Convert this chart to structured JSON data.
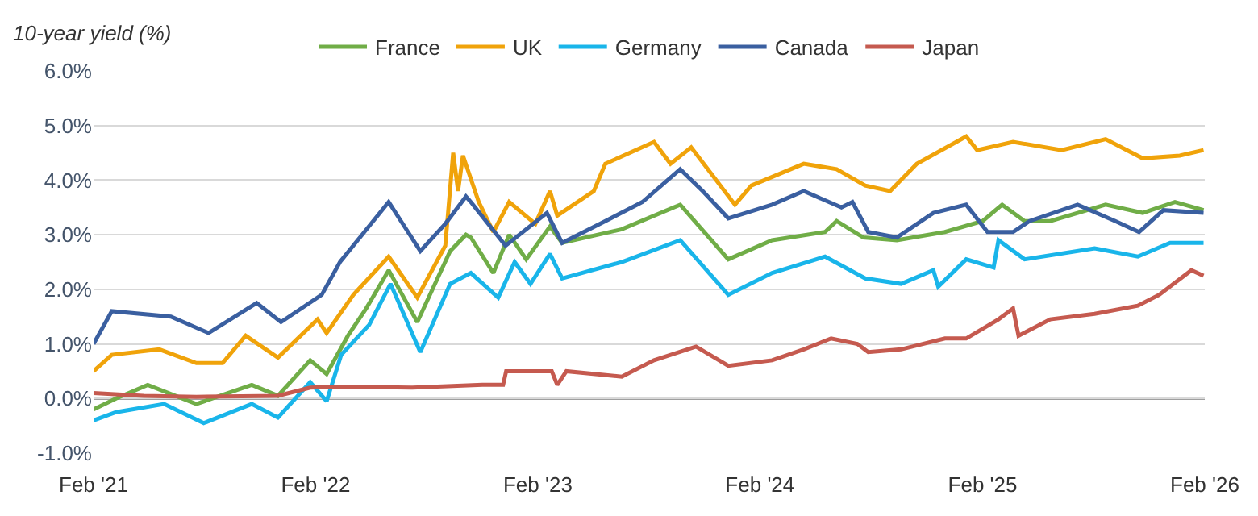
{
  "chart_data": {
    "type": "line",
    "ylabel": "10-year yield (%)",
    "xlim": [
      "2021-02-01",
      "2026-02-01"
    ],
    "xticks": [
      {
        "value": "2021-02-01",
        "label": "Feb '21"
      },
      {
        "value": "2022-02-01",
        "label": "Feb '22"
      },
      {
        "value": "2023-02-01",
        "label": "Feb '23"
      },
      {
        "value": "2024-02-01",
        "label": "Feb '24"
      },
      {
        "value": "2025-02-01",
        "label": "Feb '25"
      },
      {
        "value": "2026-02-01",
        "label": "Feb '26"
      }
    ],
    "ylim": [
      -1,
      6
    ],
    "yticks": [
      {
        "value": -1,
        "label": "-1.0%"
      },
      {
        "value": 0,
        "label": "0.0%"
      },
      {
        "value": 1,
        "label": "1.0%"
      },
      {
        "value": 2,
        "label": "2.0%"
      },
      {
        "value": 3,
        "label": "3.0%"
      },
      {
        "value": 4,
        "label": "4.0%"
      },
      {
        "value": 5,
        "label": "5.0%"
      },
      {
        "value": 6,
        "label": "6.0%"
      }
    ],
    "grid": "y",
    "legend": "top",
    "marker": "none",
    "line_style": "solid",
    "ref_lines": [
      {
        "axis": "y",
        "value": 0,
        "label": null,
        "color": "#7f7f7f"
      }
    ],
    "series": [
      {
        "name": "France",
        "color": "#70ad47",
        "x": [
          "2021-02-01",
          "2021-03-10",
          "2021-05-01",
          "2021-07-20",
          "2021-10-19",
          "2021-12-01",
          "2022-01-23",
          "2022-02-19",
          "2022-03-26",
          "2022-04-25",
          "2022-06-01",
          "2022-07-18",
          "2022-09-10",
          "2022-10-06",
          "2022-10-14",
          "2022-11-20",
          "2022-12-16",
          "2023-01-13",
          "2023-02-21",
          "2023-03-13",
          "2023-06-19",
          "2023-09-23",
          "2023-12-11",
          "2024-02-21",
          "2024-05-18",
          "2024-06-06",
          "2024-07-20",
          "2024-09-13",
          "2024-12-01",
          "2025-02-01",
          "2025-03-05",
          "2025-04-11",
          "2025-05-23",
          "2025-08-22",
          "2025-10-22",
          "2025-12-14",
          "2026-01-30"
        ],
        "values": [
          -0.2,
          0.0,
          0.25,
          -0.1,
          0.25,
          0.05,
          0.7,
          0.45,
          1.15,
          1.65,
          2.35,
          1.4,
          2.7,
          3.0,
          2.95,
          2.3,
          3.0,
          2.55,
          3.15,
          2.85,
          3.1,
          3.55,
          2.55,
          2.9,
          3.05,
          3.25,
          2.95,
          2.9,
          3.05,
          3.25,
          3.55,
          3.25,
          3.25,
          3.55,
          3.4,
          3.6,
          3.45
        ]
      },
      {
        "name": "UK",
        "color": "#f0a30a",
        "x": [
          "2021-02-01",
          "2021-03-03",
          "2021-05-20",
          "2021-07-20",
          "2021-09-01",
          "2021-10-09",
          "2021-12-01",
          "2022-02-04",
          "2022-02-19",
          "2022-04-04",
          "2022-06-01",
          "2022-07-18",
          "2022-09-02",
          "2022-09-15",
          "2022-09-23",
          "2022-10-01",
          "2022-10-27",
          "2022-11-20",
          "2022-12-16",
          "2023-01-28",
          "2023-02-21",
          "2023-03-05",
          "2023-05-04",
          "2023-05-23",
          "2023-08-11",
          "2023-09-07",
          "2023-10-11",
          "2023-12-22",
          "2024-01-18",
          "2024-04-13",
          "2024-06-06",
          "2024-07-23",
          "2024-09-02",
          "2024-10-16",
          "2025-01-05",
          "2025-01-23",
          "2025-03-23",
          "2025-06-11",
          "2025-08-22",
          "2025-10-22",
          "2025-12-22",
          "2026-01-30"
        ],
        "values": [
          0.5,
          0.8,
          0.9,
          0.65,
          0.65,
          1.15,
          0.75,
          1.45,
          1.2,
          1.9,
          2.6,
          1.85,
          2.8,
          4.5,
          3.8,
          4.45,
          3.6,
          3.05,
          3.6,
          3.2,
          3.8,
          3.35,
          3.8,
          4.3,
          4.7,
          4.3,
          4.6,
          3.55,
          3.9,
          4.3,
          4.2,
          3.9,
          3.8,
          4.3,
          4.8,
          4.55,
          4.7,
          4.55,
          4.75,
          4.4,
          4.45,
          4.55
        ]
      },
      {
        "name": "Germany",
        "color": "#19b5ea",
        "x": [
          "2021-02-01",
          "2021-03-10",
          "2021-05-28",
          "2021-08-01",
          "2021-10-19",
          "2021-12-01",
          "2022-01-23",
          "2022-02-19",
          "2022-03-15",
          "2022-04-30",
          "2022-06-04",
          "2022-07-23",
          "2022-09-10",
          "2022-10-14",
          "2022-11-28",
          "2022-12-25",
          "2023-01-20",
          "2023-02-21",
          "2023-03-13",
          "2023-06-19",
          "2023-09-23",
          "2023-12-11",
          "2024-02-21",
          "2024-05-18",
          "2024-07-23",
          "2024-09-20",
          "2024-11-12",
          "2024-11-20",
          "2025-01-05",
          "2025-02-19",
          "2025-02-27",
          "2025-04-11",
          "2025-08-04",
          "2025-10-14",
          "2025-12-06",
          "2026-01-30"
        ],
        "values": [
          -0.4,
          -0.25,
          -0.1,
          -0.45,
          -0.1,
          -0.35,
          0.3,
          -0.05,
          0.8,
          1.35,
          2.1,
          0.85,
          2.1,
          2.3,
          1.85,
          2.5,
          2.1,
          2.65,
          2.2,
          2.5,
          2.9,
          1.9,
          2.3,
          2.6,
          2.2,
          2.1,
          2.35,
          2.05,
          2.55,
          2.4,
          2.9,
          2.55,
          2.75,
          2.6,
          2.85,
          2.85
        ]
      },
      {
        "name": "Canada",
        "color": "#3a5fa0",
        "x": [
          "2021-02-01",
          "2021-03-03",
          "2021-06-08",
          "2021-08-09",
          "2021-10-27",
          "2021-12-06",
          "2022-02-11",
          "2022-03-13",
          "2022-04-22",
          "2022-06-01",
          "2022-07-23",
          "2022-09-02",
          "2022-10-06",
          "2022-10-14",
          "2022-12-10",
          "2023-02-16",
          "2023-03-13",
          "2023-05-23",
          "2023-07-23",
          "2023-09-23",
          "2023-10-30",
          "2023-12-11",
          "2024-02-21",
          "2024-04-13",
          "2024-06-14",
          "2024-07-02",
          "2024-07-28",
          "2024-09-13",
          "2024-11-12",
          "2025-01-05",
          "2025-02-09",
          "2025-03-23",
          "2025-04-19",
          "2025-07-07",
          "2025-09-07",
          "2025-10-16",
          "2025-11-25",
          "2026-01-30"
        ],
        "values": [
          1.0,
          1.6,
          1.5,
          1.2,
          1.75,
          1.4,
          1.9,
          2.5,
          3.05,
          3.6,
          2.7,
          3.2,
          3.7,
          3.6,
          2.8,
          3.4,
          2.85,
          3.25,
          3.6,
          4.2,
          3.8,
          3.3,
          3.55,
          3.8,
          3.5,
          3.6,
          3.05,
          2.95,
          3.4,
          3.55,
          3.05,
          3.05,
          3.25,
          3.55,
          3.25,
          3.05,
          3.45,
          3.4
        ]
      },
      {
        "name": "Japan",
        "color": "#c55a4f",
        "x": [
          "2021-02-01",
          "2021-04-24",
          "2021-07-20",
          "2021-12-01",
          "2022-01-23",
          "2022-03-15",
          "2022-07-10",
          "2022-11-02",
          "2022-12-06",
          "2022-12-11",
          "2023-02-24",
          "2023-03-05",
          "2023-03-20",
          "2023-06-19",
          "2023-08-11",
          "2023-10-19",
          "2023-12-11",
          "2024-02-21",
          "2024-04-13",
          "2024-05-28",
          "2024-07-10",
          "2024-07-28",
          "2024-09-20",
          "2024-12-01",
          "2025-01-05",
          "2025-02-27",
          "2025-03-23",
          "2025-04-01",
          "2025-05-23",
          "2025-08-04",
          "2025-10-14",
          "2025-11-18",
          "2026-01-10",
          "2026-01-30"
        ],
        "values": [
          0.1,
          0.05,
          0.03,
          0.05,
          0.2,
          0.22,
          0.2,
          0.25,
          0.25,
          0.5,
          0.5,
          0.25,
          0.5,
          0.4,
          0.7,
          0.95,
          0.6,
          0.7,
          0.9,
          1.1,
          1.0,
          0.85,
          0.9,
          1.1,
          1.1,
          1.45,
          1.65,
          1.15,
          1.45,
          1.55,
          1.7,
          1.9,
          2.35,
          2.25
        ]
      }
    ]
  }
}
